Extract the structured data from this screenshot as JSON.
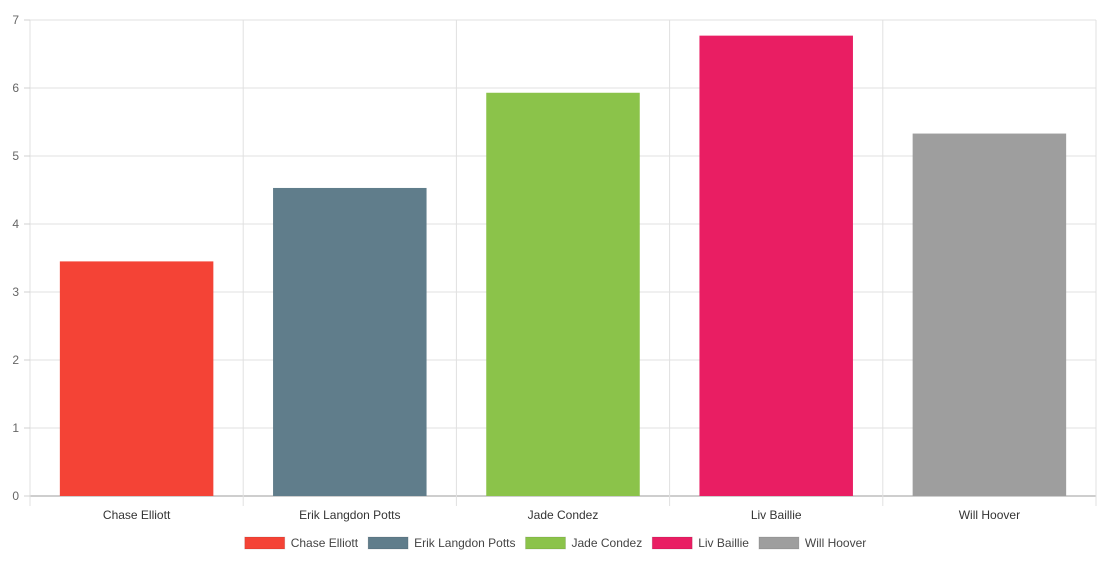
{
  "chart_data": {
    "type": "bar",
    "categories": [
      "Chase Elliott",
      "Erik Langdon Potts",
      "Jade Condez",
      "Liv Baillie",
      "Will Hoover"
    ],
    "values": [
      3.45,
      4.53,
      5.93,
      6.77,
      5.33
    ],
    "colors": [
      "#f44336",
      "#607d8b",
      "#8bc34a",
      "#e91e63",
      "#9e9e9e"
    ],
    "ylim": [
      0,
      7
    ],
    "yticks": [
      "0",
      "1",
      "2",
      "3",
      "4",
      "5",
      "6",
      "7"
    ],
    "grid": true,
    "legend_position": "bottom",
    "legend": [
      "Chase Elliott",
      "Erik Langdon Potts",
      "Jade Condez",
      "Liv Baillie",
      "Will Hoover"
    ]
  }
}
